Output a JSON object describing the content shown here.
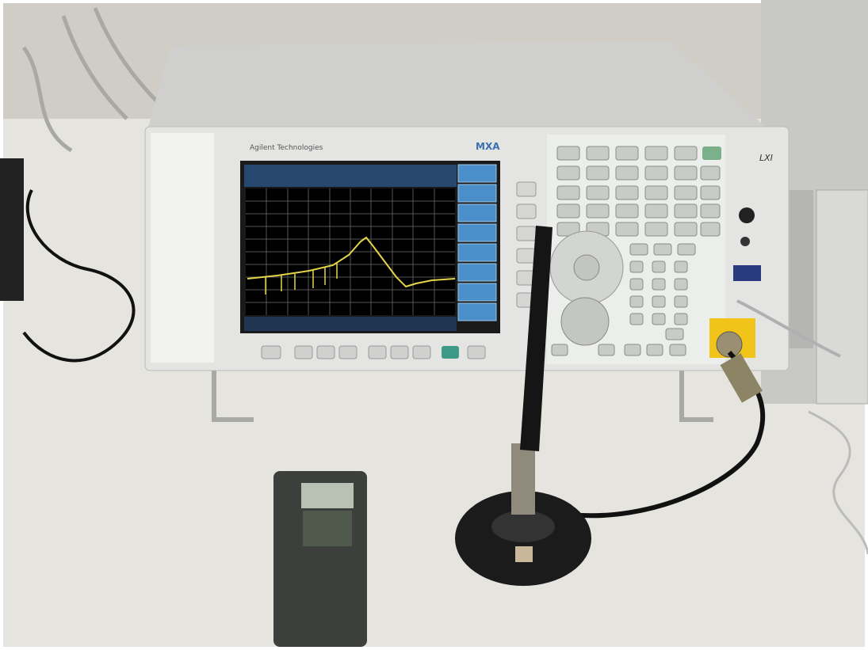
{
  "brand": "Agilent Technologies",
  "model": "MXA",
  "badge": "LXI"
}
